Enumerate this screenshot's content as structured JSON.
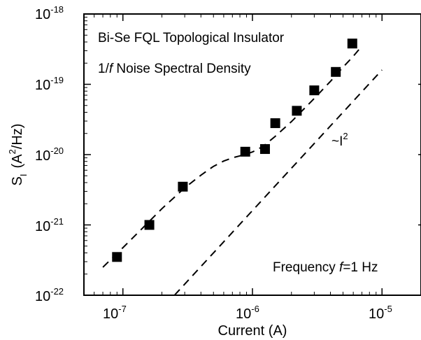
{
  "chart_data": {
    "type": "scatter",
    "xlabel": "Current (A)",
    "ylabel": {
      "base": "S",
      "sub": "I",
      "unit_pre": "(A",
      "unit_sup": "2",
      "unit_post": "/Hz)"
    },
    "x_scale": "log",
    "y_scale": "log",
    "xlim": [
      5e-08,
      2e-05
    ],
    "ylim": [
      1e-22,
      1e-18
    ],
    "x_ticks": [
      {
        "value": 1e-07,
        "base": "10",
        "exp": "-7"
      },
      {
        "value": 1e-06,
        "base": "10",
        "exp": "-6"
      },
      {
        "value": 1e-05,
        "base": "10",
        "exp": "-5"
      }
    ],
    "y_ticks": [
      {
        "value": 1e-22,
        "base": "10",
        "exp": "-22"
      },
      {
        "value": 1e-21,
        "base": "10",
        "exp": "-21"
      },
      {
        "value": 1e-20,
        "base": "10",
        "exp": "-20"
      },
      {
        "value": 1e-19,
        "base": "10",
        "exp": "-19"
      },
      {
        "value": 1e-18,
        "base": "10",
        "exp": "-18"
      }
    ],
    "grid": false,
    "series": [
      {
        "marker": "square",
        "color": "#000000",
        "x": [
          9e-08,
          1.6e-07,
          2.9e-07,
          8.8e-07,
          1.25e-06,
          1.5e-06,
          2.2e-06,
          3e-06,
          4.4e-06,
          5.9e-06
        ],
        "y": [
          3.5e-22,
          1e-21,
          3.5e-21,
          1.1e-20,
          1.2e-20,
          2.8e-20,
          4.2e-20,
          8.2e-20,
          1.5e-19,
          3.8e-19
        ]
      }
    ],
    "fit_lines": [
      {
        "style": "dashed",
        "x": [
          7e-08,
          1e-07,
          1.5e-07,
          2e-07,
          3e-07,
          4e-07,
          5e-07,
          6e-07,
          7e-07,
          8e-07,
          9e-07,
          1e-06,
          1.2e-06,
          1.5e-06,
          2e-06,
          3e-06,
          4e-06,
          5e-06,
          6e-06,
          7e-06
        ],
        "y": [
          2.5e-22,
          4.75e-22,
          1e-21,
          1.7e-21,
          3.37e-21,
          5.1e-21,
          6.8e-21,
          8.1e-21,
          9e-21,
          9.6e-21,
          1.02e-20,
          1.09e-20,
          1.3e-20,
          1.82e-20,
          2.95e-20,
          6.3e-20,
          1.1e-19,
          1.75e-19,
          2.5e-19,
          3.5e-19
        ]
      },
      {
        "style": "dashed",
        "label": "~I²",
        "x": [
          2.5e-07,
          1e-05
        ],
        "y": [
          1e-22,
          1.6e-19
        ]
      }
    ],
    "annotations": {
      "title_line1": "Bi-Se FQL Topological Insulator",
      "title_line2_pre": "1/",
      "title_line2_ital": "f",
      "title_line2_post": " Noise Spectral Density",
      "slope_pre": "~I",
      "slope_sup": "2",
      "freq_pre": "Frequency ",
      "freq_ital": "f",
      "freq_post": "=1 Hz"
    }
  }
}
